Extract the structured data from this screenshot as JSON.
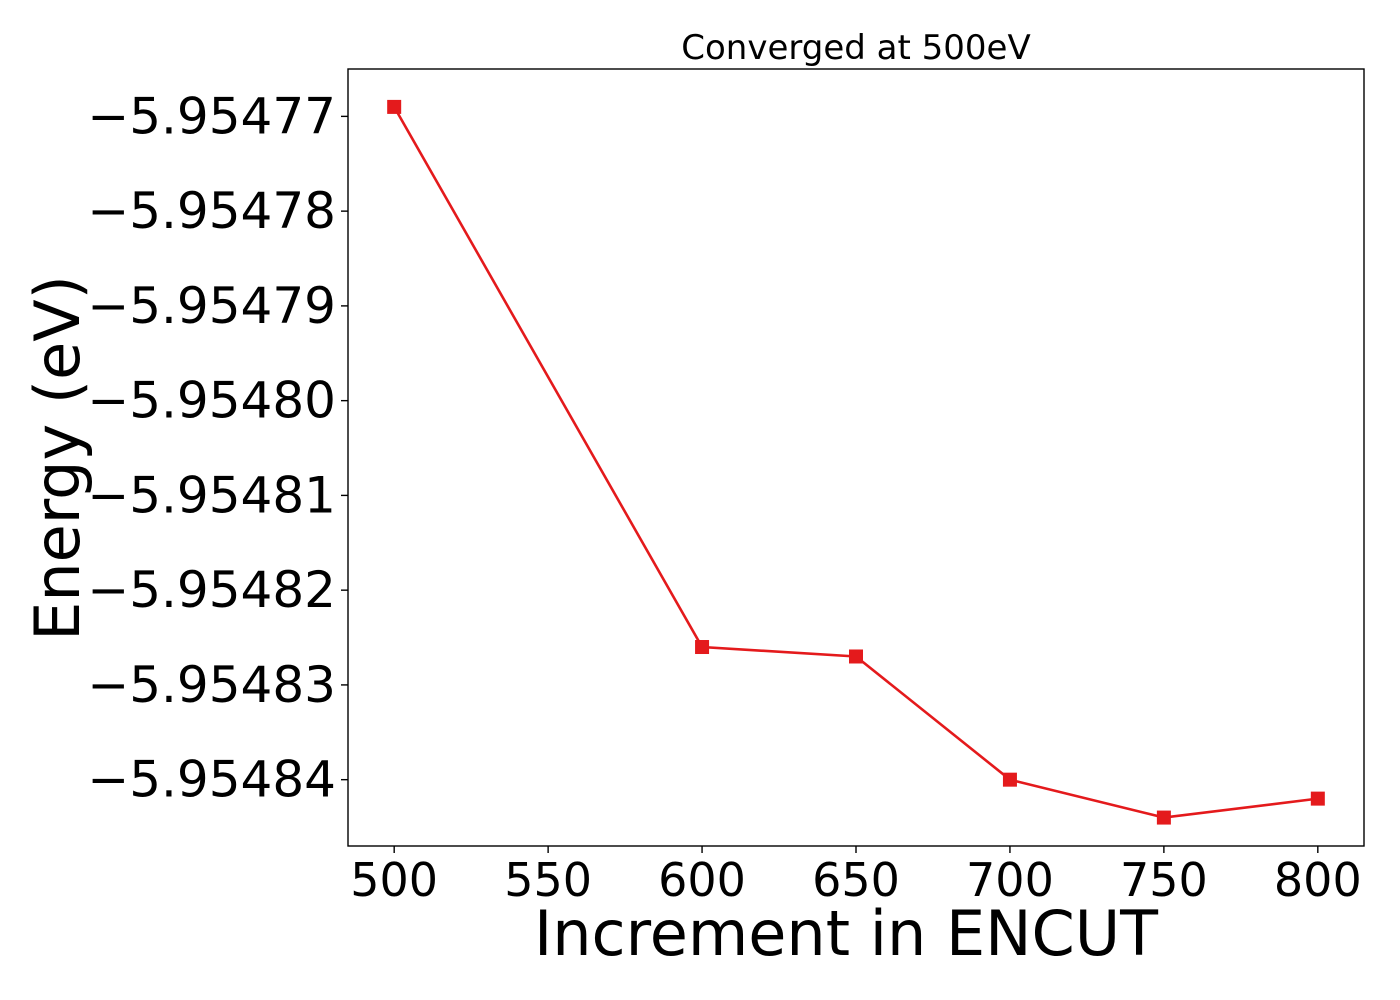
{
  "chart_data": {
    "type": "line",
    "title": "Converged at 500eV",
    "xlabel": "Increment in ENCUT",
    "ylabel": "Energy (eV)",
    "x": [
      500,
      600,
      650,
      700,
      750,
      800
    ],
    "series": [
      {
        "values": [
          -5.954769,
          -5.954826,
          -5.954827,
          -5.95484,
          -5.954844,
          -5.954842
        ],
        "color": "#e41a1c",
        "marker": "square"
      }
    ],
    "xlim": [
      485,
      815
    ],
    "ylim": [
      -5.954847,
      -5.954765
    ],
    "x_ticks": [
      500,
      550,
      600,
      650,
      700,
      750,
      800
    ],
    "x_tick_labels": [
      "500",
      "550",
      "600",
      "650",
      "700",
      "750",
      "800"
    ],
    "y_ticks": [
      -5.95477,
      -5.95478,
      -5.95479,
      -5.9548,
      -5.95481,
      -5.95482,
      -5.95483,
      -5.95484
    ],
    "y_tick_labels": [
      "−5.95477",
      "−5.95478",
      "−5.95479",
      "−5.95480",
      "−5.95481",
      "−5.95482",
      "−5.95483",
      "−5.95484"
    ],
    "grid": false,
    "legend": "none"
  }
}
